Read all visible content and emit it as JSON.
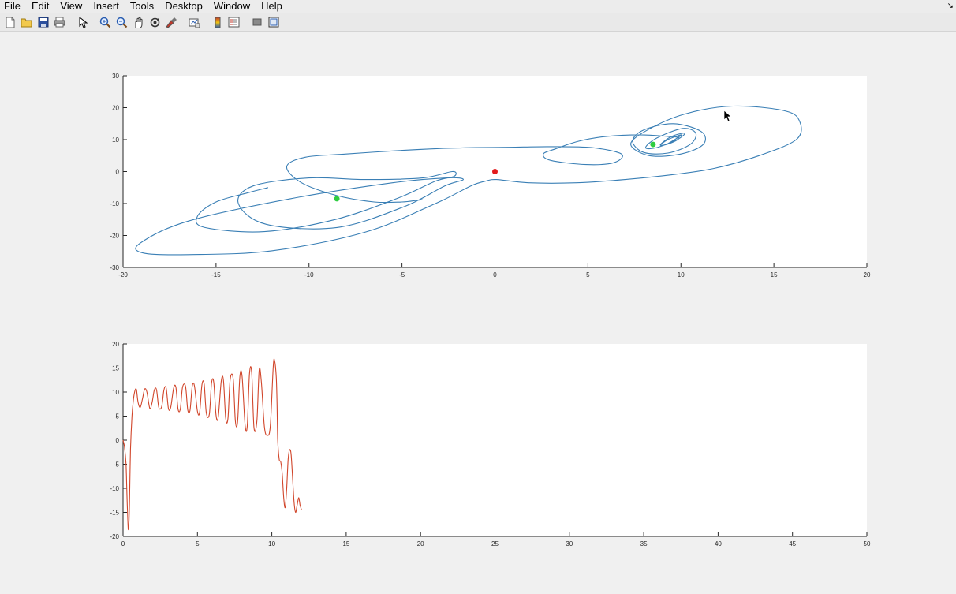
{
  "menu": {
    "items": [
      "File",
      "Edit",
      "View",
      "Insert",
      "Tools",
      "Desktop",
      "Window",
      "Help"
    ]
  },
  "toolbar": {
    "icons": [
      "new-figure-icon",
      "open-file-icon",
      "save-icon",
      "print-icon",
      "pointer-icon",
      "zoom-in-icon",
      "zoom-out-icon",
      "pan-icon",
      "rotate-3d-icon",
      "data-brush-icon",
      "link-plot-icon",
      "colorbar-icon",
      "legend-icon",
      "hide-plot-tools-icon",
      "show-plot-tools-icon"
    ]
  },
  "colors": {
    "trajectory": "#3a7fb5",
    "timeseries": "#d1462b",
    "equilibrium_center": "#e31a1c",
    "equilibrium_side": "#2ecc40"
  },
  "chart_data": [
    {
      "type": "line",
      "title": "",
      "xlabel": "",
      "ylabel": "",
      "xlim": [
        -20,
        20
      ],
      "ylim": [
        -30,
        30
      ],
      "xticks": [
        -20,
        -15,
        -10,
        -5,
        0,
        5,
        10,
        15,
        20
      ],
      "yticks": [
        -30,
        -20,
        -10,
        0,
        10,
        20,
        30
      ],
      "grid": false,
      "series": [
        {
          "kind": "trajectory",
          "x": [
            -12.2,
            -13.2,
            -15.0,
            -16.0,
            -15.6,
            -12.4,
            -8.6,
            -5.3,
            -3.2,
            -2.2,
            -2.3,
            -3.9,
            -7.0,
            -10.0,
            -13.0,
            -13.8,
            -12.3,
            -8.5,
            -4.9,
            -2.7,
            -1.7,
            -2.6,
            -5.5,
            -11.0,
            -16.5,
            -19.1,
            -18.9,
            -16.5,
            -12.0,
            -7.0,
            -3.2,
            -1.3,
            -0.5,
            0.1,
            1.8,
            4.4,
            7.0,
            9.5,
            11.8,
            14.2,
            16.2,
            16.4,
            15.6,
            12.8,
            10.2,
            8.2,
            7.3,
            8.3,
            10.0,
            11.2,
            11.1,
            9.6,
            8.0,
            7.4,
            8.0,
            9.3,
            10.5,
            10.8,
            10.1,
            8.7,
            8.1,
            8.7,
            9.8,
            10.2,
            9.5,
            8.9,
            9.2,
            9.8,
            10.0,
            9.3,
            8.9,
            9.4,
            9.9,
            9.3,
            7.8,
            6.0,
            4.5,
            3.2,
            2.6,
            3.0,
            4.9,
            6.4,
            6.8,
            5.2,
            2.9,
            0.8,
            -1.0,
            -3.0,
            -5.4,
            -8.0,
            -10.2,
            -11.2,
            -10.4,
            -8.5,
            -6.5,
            -5.0,
            -4.2,
            -3.9
          ],
          "y": [
            -5.0,
            -6.5,
            -9.5,
            -14.0,
            -17.5,
            -18.8,
            -15.0,
            -8.5,
            -3.0,
            -1.5,
            0.0,
            -2.0,
            -2.5,
            -2.0,
            -4.5,
            -10.0,
            -16.5,
            -17.5,
            -11.0,
            -4.5,
            -2.5,
            -2.0,
            -3.5,
            -8.5,
            -15.5,
            -22.5,
            -25.5,
            -26.0,
            -24.8,
            -19.0,
            -10.0,
            -4.5,
            -3.0,
            -2.5,
            -3.5,
            -3.5,
            -2.5,
            -1.0,
            1.0,
            5.0,
            10.0,
            15.5,
            19.0,
            20.5,
            18.0,
            13.0,
            8.5,
            5.0,
            5.5,
            8.5,
            12.5,
            15.0,
            13.0,
            9.5,
            6.0,
            5.8,
            8.5,
            12.0,
            13.5,
            10.5,
            7.5,
            7.5,
            10.0,
            12.0,
            11.0,
            8.5,
            8.5,
            10.5,
            11.5,
            10.0,
            8.2,
            8.8,
            10.5,
            11.0,
            11.5,
            11.0,
            9.5,
            7.0,
            5.5,
            3.5,
            2.2,
            2.8,
            5.5,
            7.5,
            7.8,
            7.6,
            7.5,
            7.2,
            6.5,
            5.5,
            4.5,
            1.5,
            -3.5,
            -7.5,
            -9.5,
            -9.5,
            -9.0,
            -8.8
          ]
        },
        {
          "kind": "equilibria",
          "points": [
            {
              "x": 0,
              "y": 0,
              "color": "#e31a1c"
            },
            {
              "x": -8.5,
              "y": -8.5,
              "color": "#2ecc40"
            },
            {
              "x": 8.5,
              "y": 8.5,
              "color": "#2ecc40"
            }
          ]
        }
      ]
    },
    {
      "type": "line",
      "title": "",
      "xlabel": "",
      "ylabel": "",
      "xlim": [
        0,
        50
      ],
      "ylim": [
        -20,
        20
      ],
      "xticks": [
        0,
        5,
        10,
        15,
        20,
        25,
        30,
        35,
        40,
        45,
        50
      ],
      "yticks": [
        -20,
        -15,
        -10,
        -5,
        0,
        5,
        10,
        15,
        20
      ],
      "grid": false,
      "series": [
        {
          "kind": "timeseries",
          "x": [
            0.0,
            0.1,
            0.2,
            0.25,
            0.3,
            0.35,
            0.4,
            0.45,
            0.5,
            0.6,
            0.7,
            0.8,
            0.9,
            1.0,
            1.15,
            1.3,
            1.45,
            1.6,
            1.8,
            1.95,
            2.1,
            2.25,
            2.4,
            2.6,
            2.75,
            2.9,
            3.05,
            3.2,
            3.4,
            3.55,
            3.7,
            3.85,
            4.0,
            4.2,
            4.35,
            4.5,
            4.65,
            4.8,
            5.0,
            5.15,
            5.3,
            5.45,
            5.6,
            5.8,
            5.95,
            6.1,
            6.25,
            6.4,
            6.6,
            6.75,
            6.9,
            7.05,
            7.2,
            7.4,
            7.55,
            7.7,
            7.85,
            8.0,
            8.2,
            8.35,
            8.5,
            8.65,
            8.8,
            9.0,
            9.15,
            9.3,
            9.5,
            9.7,
            9.9,
            10.1,
            10.2,
            10.3,
            10.35,
            10.4,
            10.5,
            10.6,
            10.7,
            10.8,
            10.9,
            11.0,
            11.1,
            11.2,
            11.3,
            11.4,
            11.5,
            11.6,
            11.7,
            11.8,
            11.85,
            11.9,
            12.0
          ],
          "y": [
            0.0,
            -1.5,
            -5.0,
            -10.0,
            -15.0,
            -18.5,
            -17.0,
            -10.0,
            -2.0,
            5.0,
            8.5,
            10.3,
            10.5,
            8.0,
            6.8,
            8.5,
            10.6,
            10.0,
            6.6,
            7.8,
            10.4,
            10.5,
            6.8,
            7.0,
            10.5,
            10.8,
            6.6,
            6.8,
            10.8,
            11.0,
            6.4,
            6.5,
            11.0,
            11.2,
            6.3,
            6.2,
            11.2,
            11.3,
            6.0,
            5.8,
            11.5,
            11.7,
            5.6,
            5.4,
            11.9,
            12.0,
            5.2,
            4.8,
            12.3,
            12.4,
            4.6,
            4.5,
            12.6,
            12.8,
            4.0,
            3.8,
            13.2,
            13.3,
            3.2,
            3.0,
            13.8,
            14.0,
            2.6,
            4.0,
            14.6,
            12.0,
            2.8,
            1.0,
            3.0,
            15.5,
            16.3,
            13.0,
            8.0,
            0.0,
            -4.0,
            -4.5,
            -7.0,
            -12.0,
            -14.0,
            -10.0,
            -4.0,
            -2.0,
            -3.0,
            -8.0,
            -13.0,
            -15.0,
            -13.5,
            -12.0,
            -12.5,
            -13.5,
            -14.5
          ]
        }
      ]
    }
  ]
}
